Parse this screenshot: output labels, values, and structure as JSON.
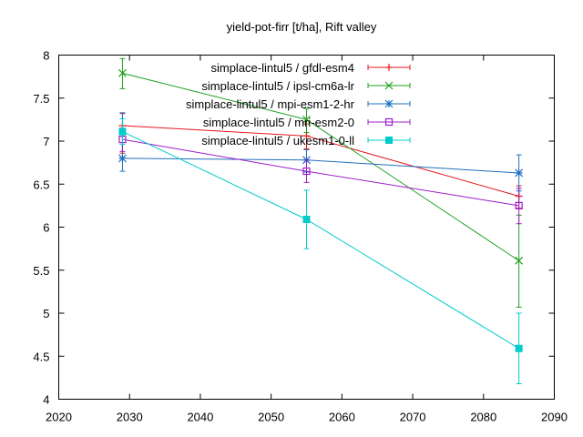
{
  "chart_data": {
    "type": "line",
    "title": "yield-pot-firr [t/ha], Rift valley",
    "xlabel": "",
    "ylabel": "",
    "xlim": [
      2020,
      2090
    ],
    "ylim": [
      4,
      8
    ],
    "xticks": [
      2020,
      2030,
      2040,
      2050,
      2060,
      2070,
      2080,
      2090
    ],
    "yticks": [
      4,
      4.5,
      5,
      5.5,
      6,
      6.5,
      7,
      7.5,
      8
    ],
    "ytick_labels": [
      "4",
      "4.5",
      "5",
      "5.5",
      "6",
      "6.5",
      "7",
      "7.5",
      "8"
    ],
    "grid": false,
    "legend_position": "top-right",
    "x": [
      2029,
      2055,
      2085
    ],
    "series": [
      {
        "name": "simplace-lintul5 / gfdl-esm4",
        "color": "#e41a1c",
        "marker": "plus",
        "values": [
          7.18,
          7.06,
          6.36
        ],
        "err_low": [
          6.86,
          6.91,
          6.22
        ],
        "err_high": [
          7.32,
          7.2,
          6.48
        ]
      },
      {
        "name": "simplace-lintul5 / ipsl-cm6a-lr",
        "color": "#1fa01f",
        "marker": "x",
        "values": [
          7.79,
          7.25,
          5.61
        ],
        "err_low": [
          7.61,
          7.1,
          5.07
        ],
        "err_high": [
          7.96,
          7.38,
          6.14
        ]
      },
      {
        "name": "simplace-lintul5 / mpi-esm1-2-hr",
        "color": "#1f6fbf",
        "marker": "star",
        "values": [
          6.8,
          6.78,
          6.63
        ],
        "err_low": [
          6.65,
          6.64,
          6.42
        ],
        "err_high": [
          7.33,
          6.9,
          6.84
        ]
      },
      {
        "name": "simplace-lintul5 / mri-esm2-0",
        "color": "#9b1fc8",
        "marker": "open-square",
        "values": [
          7.02,
          6.65,
          6.25
        ],
        "err_low": [
          6.88,
          6.52,
          6.04
        ],
        "err_high": [
          7.15,
          6.78,
          6.45
        ]
      },
      {
        "name": "simplace-lintul5 / ukesm1-0-ll",
        "color": "#00cccc",
        "marker": "filled-square",
        "values": [
          7.11,
          6.09,
          4.59
        ],
        "err_low": [
          6.96,
          5.75,
          4.18
        ],
        "err_high": [
          7.26,
          6.43,
          5.0
        ]
      }
    ]
  }
}
